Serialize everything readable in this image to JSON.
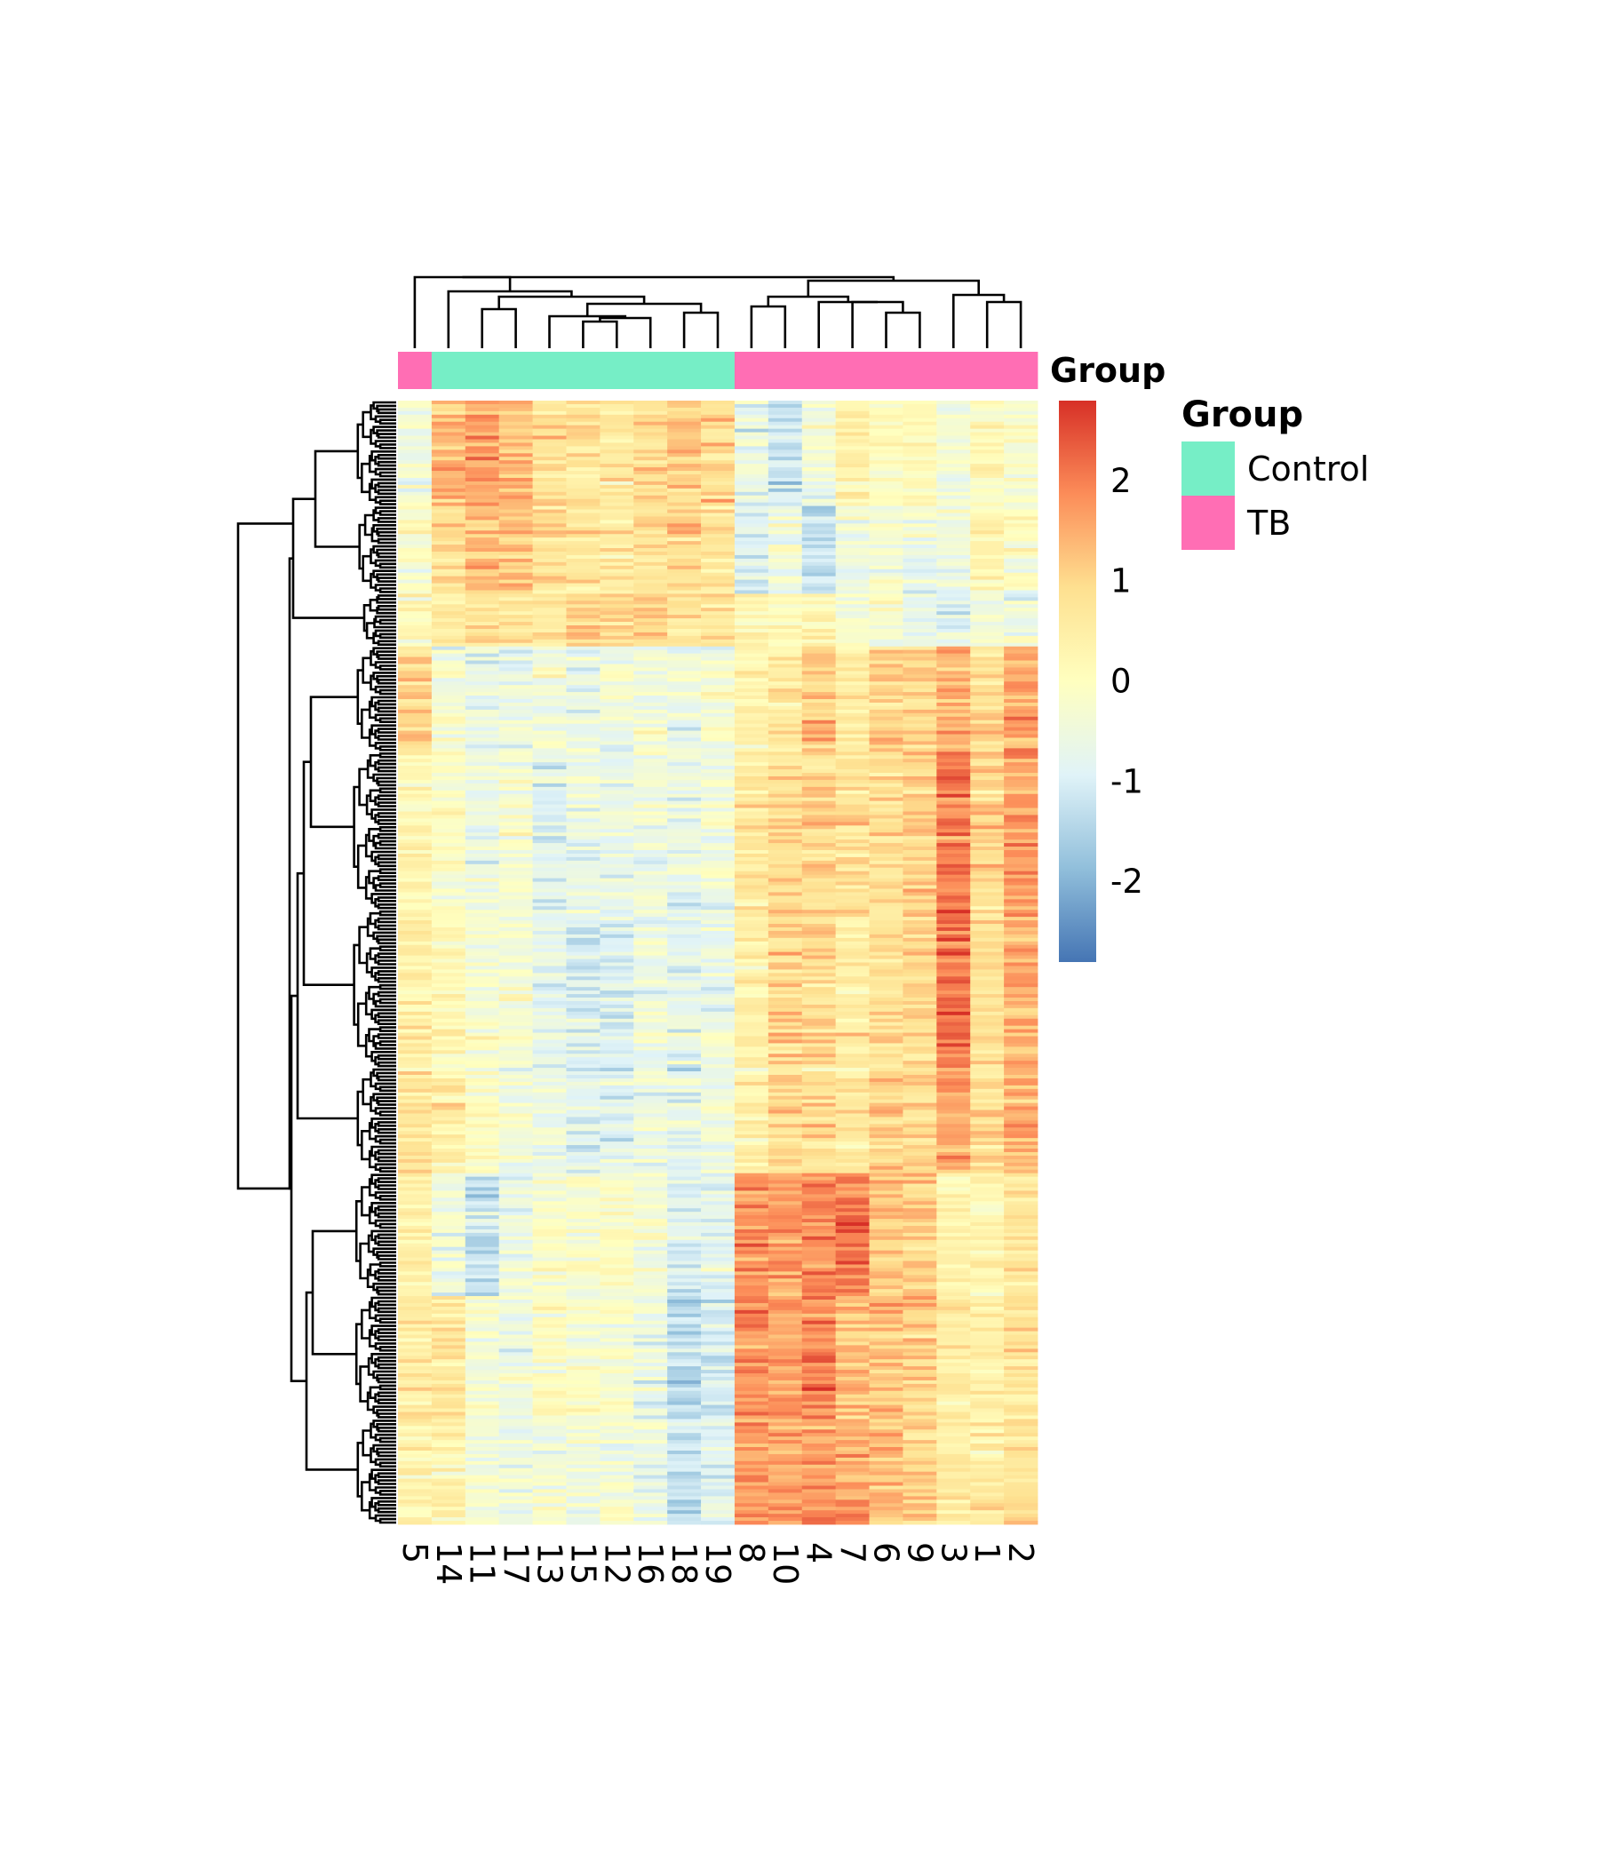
{
  "chart_data": {
    "type": "heatmap",
    "title": "",
    "columns": [
      "5",
      "14",
      "11",
      "17",
      "13",
      "15",
      "12",
      "16",
      "18",
      "19",
      "8",
      "10",
      "4",
      "7",
      "6",
      "9",
      "3",
      "1",
      "2"
    ],
    "column_groups": [
      "TB",
      "Control",
      "Control",
      "Control",
      "Control",
      "Control",
      "Control",
      "Control",
      "Control",
      "Control",
      "TB",
      "TB",
      "TB",
      "TB",
      "TB",
      "TB",
      "TB",
      "TB",
      "TB"
    ],
    "row_count": 320,
    "row_labels_shown": false,
    "row_dendrogram": true,
    "column_dendrogram": true,
    "color_scale": {
      "stops": [
        "#4575b4",
        "#91bfdb",
        "#e0f3f8",
        "#ffffbf",
        "#fee090",
        "#fc8d59",
        "#d73027"
      ],
      "min": -2.8,
      "max": 2.8,
      "ticks": [
        "2",
        "1",
        "0",
        "-1",
        "-2"
      ],
      "tick_values": [
        2,
        1,
        0,
        -1,
        -2
      ]
    },
    "cluster_blocks": [
      {
        "rows": [
          0,
          30
        ],
        "values": [
          -0.3,
          1.4,
          1.6,
          1.4,
          0.9,
          0.8,
          0.6,
          0.9,
          1.2,
          1.0,
          -0.6,
          -1.2,
          -0.5,
          0.4,
          0.0,
          0.2,
          -0.4,
          0.1,
          -0.2
        ]
      },
      {
        "rows": [
          30,
          55
        ],
        "values": [
          -0.1,
          1.0,
          1.3,
          1.3,
          0.8,
          0.7,
          0.6,
          0.8,
          1.0,
          0.8,
          -0.9,
          -0.5,
          -1.2,
          -0.5,
          -0.3,
          -0.6,
          -0.4,
          0.3,
          0.0
        ]
      },
      {
        "rows": [
          55,
          70
        ],
        "values": [
          0.1,
          0.5,
          0.8,
          0.7,
          0.6,
          1.1,
          1.0,
          1.1,
          0.6,
          0.7,
          0.3,
          -0.2,
          0.3,
          -0.2,
          -0.4,
          -0.7,
          -0.9,
          -0.4,
          -0.6
        ]
      },
      {
        "rows": [
          70,
          100
        ],
        "values": [
          0.9,
          -0.3,
          -0.7,
          -0.6,
          -0.4,
          -0.6,
          -0.5,
          -0.4,
          -0.5,
          -0.3,
          0.3,
          0.6,
          1.2,
          0.6,
          1.1,
          1.0,
          1.5,
          0.9,
          1.6
        ]
      },
      {
        "rows": [
          100,
          145
        ],
        "values": [
          0.2,
          -0.1,
          -0.6,
          -0.3,
          -0.8,
          -0.6,
          -0.6,
          -0.5,
          -0.6,
          -0.4,
          0.6,
          0.9,
          1.0,
          0.8,
          0.9,
          1.1,
          2.0,
          1.0,
          1.7
        ]
      },
      {
        "rows": [
          145,
          190
        ],
        "values": [
          0.5,
          0.2,
          -0.2,
          -0.3,
          -0.7,
          -1.0,
          -0.9,
          -0.5,
          -0.8,
          -0.5,
          0.4,
          1.0,
          0.9,
          0.6,
          0.8,
          1.0,
          2.2,
          0.8,
          1.5
        ]
      },
      {
        "rows": [
          190,
          220
        ],
        "values": [
          0.7,
          0.4,
          0.0,
          -0.4,
          -0.6,
          -0.9,
          -0.8,
          -0.5,
          -0.8,
          -0.5,
          0.3,
          0.9,
          0.7,
          0.6,
          1.0,
          0.9,
          1.5,
          0.8,
          1.4
        ]
      },
      {
        "rows": [
          220,
          255
        ],
        "values": [
          0.3,
          -0.5,
          -1.3,
          -0.6,
          -0.2,
          -0.2,
          -0.1,
          -0.3,
          -1.0,
          -0.8,
          1.9,
          1.6,
          1.8,
          2.0,
          1.2,
          1.1,
          0.3,
          0.2,
          0.7
        ]
      },
      {
        "rows": [
          255,
          290
        ],
        "values": [
          0.5,
          0.6,
          -0.3,
          -0.5,
          0.0,
          -0.2,
          -0.3,
          -0.7,
          -1.4,
          -1.0,
          1.8,
          1.7,
          1.9,
          1.2,
          1.3,
          1.0,
          0.5,
          0.4,
          0.7
        ]
      },
      {
        "rows": [
          290,
          320
        ],
        "values": [
          0.3,
          0.3,
          -0.4,
          -0.6,
          -0.3,
          -0.5,
          -0.4,
          -0.6,
          -1.2,
          -0.9,
          1.7,
          1.5,
          1.7,
          1.6,
          1.2,
          1.1,
          0.6,
          0.5,
          0.8
        ]
      }
    ],
    "annotation": {
      "title": "Group",
      "legend_title": "Group",
      "levels": [
        {
          "name": "Control",
          "color": "#76eec6"
        },
        {
          "name": "TB",
          "color": "#ff6eb4"
        }
      ]
    }
  }
}
